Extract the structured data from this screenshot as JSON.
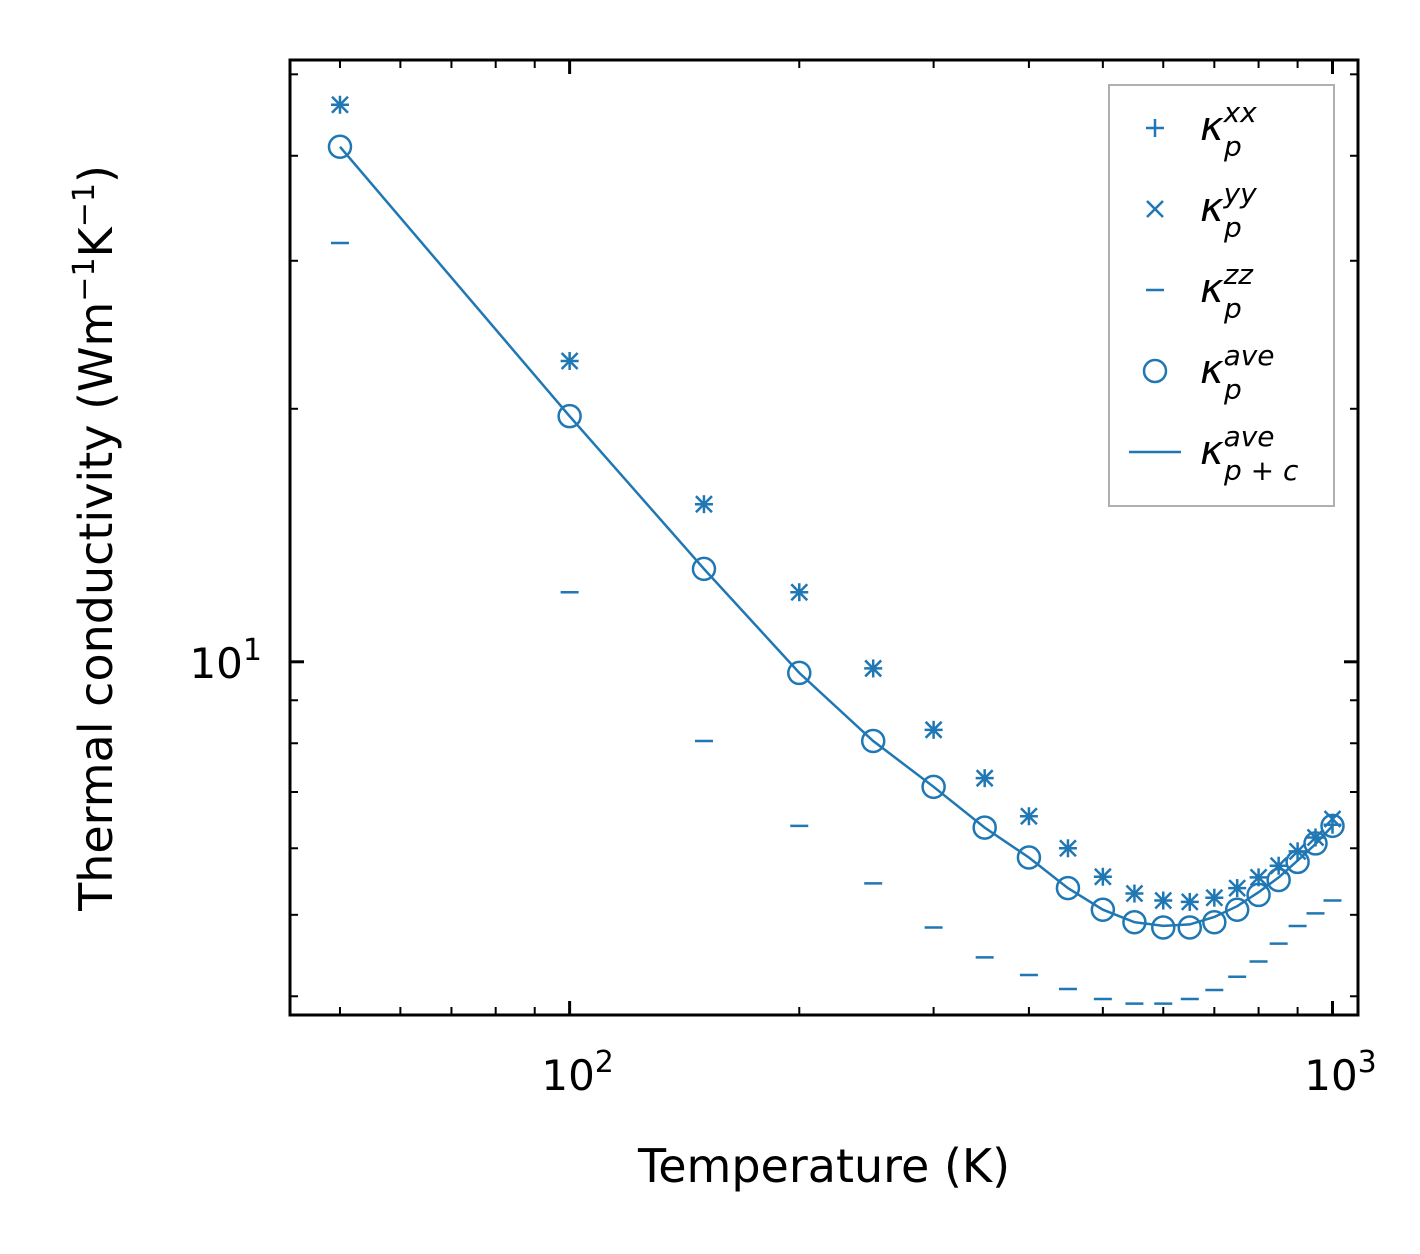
{
  "chart_data": {
    "type": "scatter",
    "xscale": "log",
    "yscale": "log",
    "xlabel": "Temperature (K)",
    "ylabel_base": "Thermal conductivity (Wm",
    "ylabel_sup1": "−1",
    "ylabel_mid": "K",
    "ylabel_sup2": "−1",
    "ylabel_end": ")",
    "xlim": [
      43,
      1080
    ],
    "ylim": [
      3.8,
      52
    ],
    "xticks": [
      {
        "value": 100,
        "base": "10",
        "exp": "2"
      },
      {
        "value": 1000,
        "base": "10",
        "exp": "3"
      }
    ],
    "yticks": [
      {
        "value": 10,
        "base": "10",
        "exp": "1"
      }
    ],
    "color": "#1f77b4",
    "x": [
      50,
      100,
      150,
      200,
      250,
      300,
      350,
      400,
      450,
      500,
      550,
      600,
      650,
      700,
      750,
      800,
      850,
      900,
      950,
      1000
    ],
    "series": [
      {
        "name": "kappa_xx",
        "marker": "+",
        "values": [
          46.0,
          22.8,
          15.4,
          12.1,
          9.82,
          8.3,
          7.27,
          6.55,
          6.0,
          5.55,
          5.3,
          5.2,
          5.18,
          5.24,
          5.38,
          5.54,
          5.72,
          5.95,
          6.18,
          6.4
        ]
      },
      {
        "name": "kappa_yy",
        "marker": "x",
        "values": [
          46.0,
          22.8,
          15.4,
          12.1,
          9.82,
          8.3,
          7.27,
          6.55,
          6.0,
          5.55,
          5.3,
          5.2,
          5.18,
          5.24,
          5.38,
          5.54,
          5.72,
          5.95,
          6.18,
          6.5
        ]
      },
      {
        "name": "kappa_zz",
        "marker": "_",
        "values": [
          31.5,
          12.1,
          8.05,
          6.38,
          5.45,
          4.83,
          4.45,
          4.24,
          4.08,
          3.97,
          3.92,
          3.92,
          3.97,
          4.07,
          4.22,
          4.4,
          4.62,
          4.85,
          5.02,
          5.2
        ]
      },
      {
        "name": "kappa_ave",
        "marker": "o",
        "values": [
          41.0,
          19.6,
          12.9,
          9.7,
          8.05,
          7.1,
          6.35,
          5.85,
          5.38,
          5.07,
          4.9,
          4.83,
          4.83,
          4.9,
          5.07,
          5.28,
          5.5,
          5.78,
          6.08,
          6.38
        ]
      },
      {
        "name": "kappa_pc_ave",
        "marker": "line",
        "values": [
          41.0,
          19.6,
          12.9,
          9.7,
          8.05,
          7.1,
          6.35,
          5.85,
          5.38,
          5.07,
          4.9,
          4.85,
          4.87,
          4.97,
          5.12,
          5.32,
          5.54,
          5.8,
          6.07,
          6.38
        ]
      }
    ],
    "legend": {
      "position": "top-right",
      "entries": [
        {
          "key": "kappa_xx",
          "symbol": "κ",
          "sub": "p",
          "sup": "xx"
        },
        {
          "key": "kappa_yy",
          "symbol": "κ",
          "sub": "p",
          "sup": "yy"
        },
        {
          "key": "kappa_zz",
          "symbol": "κ",
          "sub": "p",
          "sup": "zz"
        },
        {
          "key": "kappa_ave",
          "symbol": "κ",
          "sub": "p",
          "sup": "ave"
        },
        {
          "key": "kappa_pc_ave",
          "symbol": "κ",
          "sub": "p + c",
          "sup": "ave"
        }
      ]
    }
  }
}
